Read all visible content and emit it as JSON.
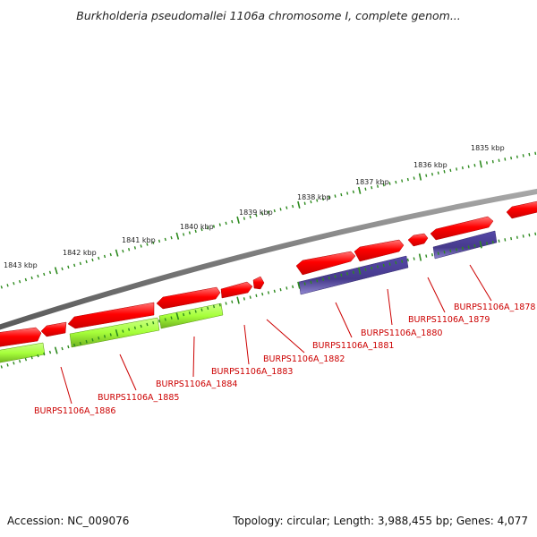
{
  "title": "Burkholderia pseudomallei 1106a chromosome I, complete genom...",
  "accession": "Accession: NC_009076",
  "stats": "Topology: circular; Length: 3,988,455 bp; Genes: 4,077",
  "colors": {
    "backbone": "#808080",
    "forward_cds": "#ff0000",
    "reverse_cds": "#ff0000",
    "reverse_gene_green": "#99ff33",
    "reverse_gene_purple": "#4a3f8f",
    "ticks": "#2d8a1e",
    "gene_label": "#cc0000"
  },
  "scale_labels": [
    "1843 kbp",
    "1842 kbp",
    "1841 kbp",
    "1840 kbp",
    "1839 kbp",
    "1838 kbp",
    "1837 kbp",
    "1836 kbp",
    "1835 kbp"
  ],
  "gene_labels": [
    "BURPS1106A_1878",
    "BURPS1106A_1879",
    "BURPS1106A_1880",
    "BURPS1106A_1881",
    "BURPS1106A_1882",
    "BURPS1106A_1883",
    "BURPS1106A_1884",
    "BURPS1106A_1885",
    "BURPS1106A_1886"
  ]
}
